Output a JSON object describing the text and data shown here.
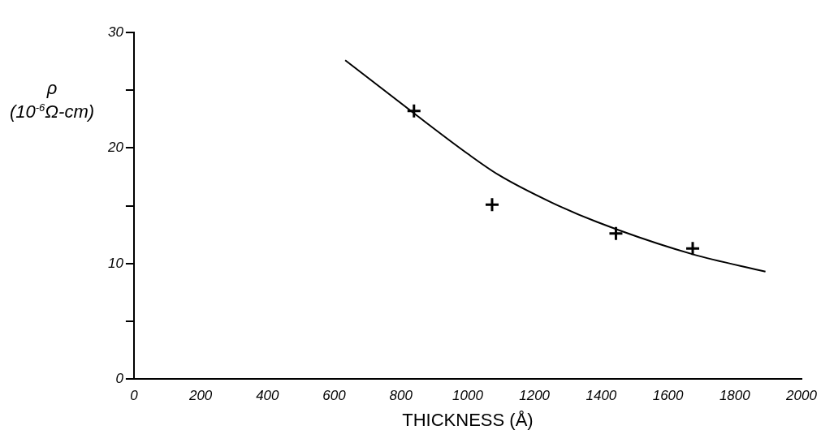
{
  "chart_data": {
    "type": "scatter",
    "xlabel": "THICKNESS (Å)",
    "ylabel": "ρ (10$^{-6}$Ω-cm)",
    "series": [
      {
        "color": "#000000",
        "marker": "cross",
        "x": [
          839,
          1073,
          1444,
          1674
        ],
        "values": [
          23.2,
          15.1,
          12.6,
          11.3
        ]
      },
      {
        "type": "line",
        "color": "#000000",
        "marker": "none",
        "x": [
          633,
          848,
          1000,
          1091,
          1250,
          1387,
          1674,
          1892
        ],
        "values": [
          27.6,
          22.8,
          19.5,
          17.7,
          15.3,
          13.6,
          10.8,
          9.3
        ]
      }
    ],
    "xlim": [
      0,
      2000
    ],
    "xticks": [
      0,
      200,
      400,
      600,
      800,
      1000,
      1200,
      1400,
      1600,
      1800,
      2000
    ],
    "ylim": [
      0,
      30
    ],
    "yticks": [
      0,
      {
        "value": 5,
        "label": null
      },
      10,
      {
        "value": 15,
        "label": null
      },
      20,
      {
        "value": 25,
        "label": null
      },
      30
    ],
    "grid": false,
    "legend": false
  }
}
